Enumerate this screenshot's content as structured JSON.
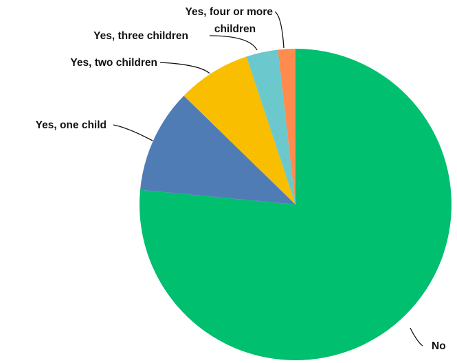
{
  "chart_data": {
    "type": "pie",
    "title": "",
    "slices": [
      {
        "label": "No",
        "value": 76.5,
        "color": "#00bf6f"
      },
      {
        "label": "Yes, one child",
        "value": 10.8,
        "color": "#507cb6"
      },
      {
        "label": "Yes, two children",
        "value": 7.6,
        "color": "#f9be00"
      },
      {
        "label": "Yes, three children",
        "value": 3.3,
        "color": "#6bc8cd"
      },
      {
        "label": "Yes, four or more children",
        "value": 1.8,
        "color": "#ff8b4f"
      }
    ],
    "start": "12 o'clock",
    "direction": "clockwise",
    "legend": "none",
    "data_labels": "category names with leader lines"
  }
}
